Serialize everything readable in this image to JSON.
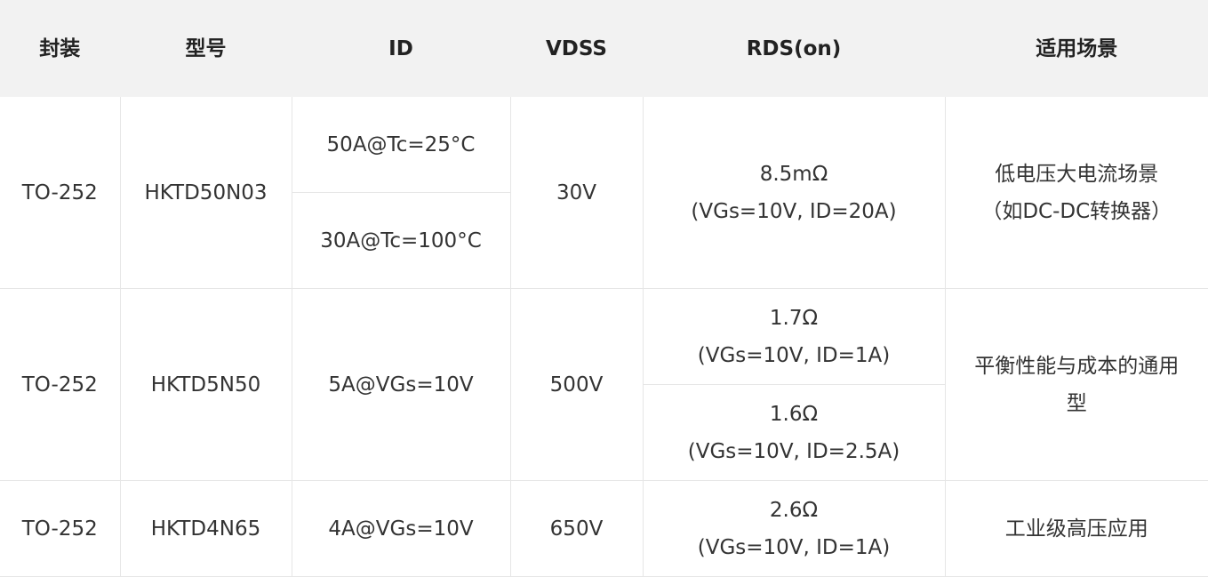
{
  "table": {
    "header": [
      "封装",
      "型号",
      "ID",
      "VDSS",
      "RDS(on)",
      "适用场景"
    ],
    "rows": [
      {
        "package": "TO-252",
        "model": "HKTD50N03",
        "id": [
          "50A@Tc=25°C",
          "30A@Tc=100°C"
        ],
        "vdss": "30V",
        "rds": [
          [
            "8.5mΩ",
            "(VGs=10V, ID=20A)"
          ]
        ],
        "use": [
          "低电压大电流场景",
          "（如DC-DC转换器）"
        ]
      },
      {
        "package": "TO-252",
        "model": "HKTD5N50",
        "id": [
          "5A@VGs=10V"
        ],
        "vdss": "500V",
        "rds": [
          [
            "1.7Ω",
            "(VGs=10V, ID=1A)"
          ],
          [
            "1.6Ω",
            "(VGs=10V, ID=2.5A)"
          ]
        ],
        "use": [
          "平衡性能与成本的通用",
          "型"
        ]
      },
      {
        "package": "TO-252",
        "model": "HKTD4N65",
        "id": [
          "4A@VGs=10V"
        ],
        "vdss": "650V",
        "rds": [
          [
            "2.6Ω",
            "(VGs=10V, ID=1A)"
          ]
        ],
        "use": [
          "工业级高压应用"
        ]
      }
    ]
  }
}
